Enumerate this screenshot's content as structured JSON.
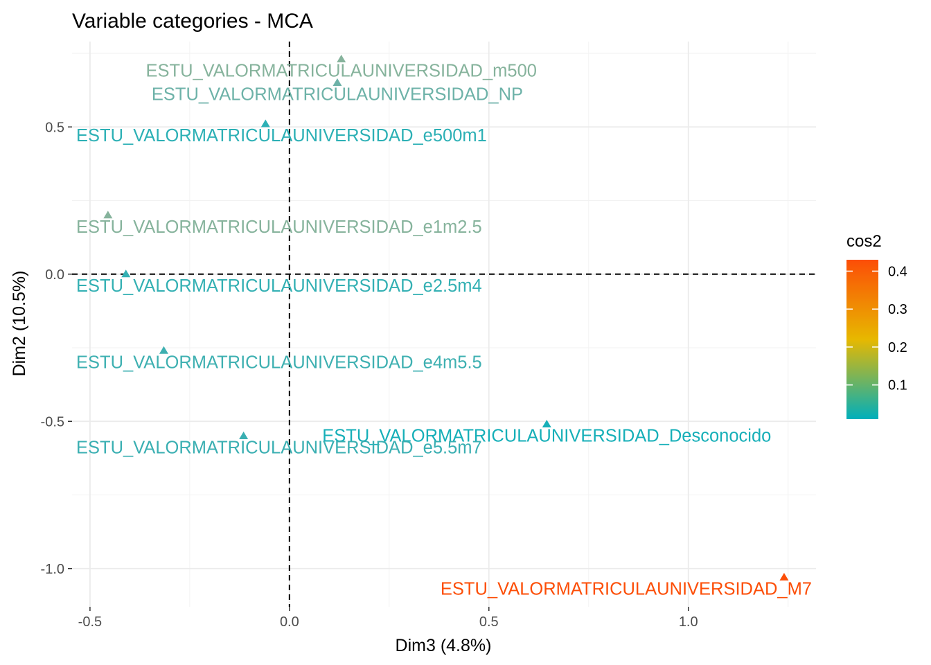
{
  "chart_data": {
    "type": "scatter",
    "title": "Variable categories - MCA",
    "xlabel": "Dim3 (4.8%)",
    "ylabel": "Dim2 (10.5%)",
    "xlim": [
      -0.545,
      1.32
    ],
    "ylim": [
      -1.13,
      0.79
    ],
    "x_ticks": [
      -0.5,
      0.0,
      0.5,
      1.0
    ],
    "x_tick_labels": [
      "-0.5",
      "0.0",
      "0.5",
      "1.0"
    ],
    "y_ticks": [
      -1.0,
      -0.5,
      0.0,
      0.5
    ],
    "y_tick_labels": [
      "-1.0",
      "-0.5",
      "0.0",
      "0.5"
    ],
    "reference_lines": {
      "x": 0,
      "y": 0
    },
    "grid": true,
    "legend": {
      "title": "cos2",
      "position": "right",
      "range": [
        0.01,
        0.43
      ],
      "ticks": [
        0.1,
        0.2,
        0.3,
        0.4
      ],
      "tick_labels": [
        "0.1",
        "0.2",
        "0.3",
        "0.4"
      ],
      "color_stops": [
        "#00AFBB",
        "#E7B800",
        "#FC4E07"
      ]
    },
    "points": [
      {
        "label": "ESTU_VALORMATRICULAUNIVERSIDAD_m500",
        "x": 0.13,
        "y": 0.73,
        "cos2": 0.07,
        "color": "#86b39c"
      },
      {
        "label": "ESTU_VALORMATRICULAUNIVERSIDAD_NP",
        "x": 0.12,
        "y": 0.65,
        "cos2": 0.05,
        "color": "#6db2a8"
      },
      {
        "label": "ESTU_VALORMATRICULAUNIVERSIDAD_e500m1",
        "x": -0.06,
        "y": 0.51,
        "cos2": 0.02,
        "color": "#2cb0b5"
      },
      {
        "label": "ESTU_VALORMATRICULAUNIVERSIDAD_e1m2.5",
        "x": -0.455,
        "y": 0.2,
        "cos2": 0.07,
        "color": "#86b39c"
      },
      {
        "label": "ESTU_VALORMATRICULAUNIVERSIDAD_e2.5m4",
        "x": -0.41,
        "y": 0.0,
        "cos2": 0.02,
        "color": "#33b0b3"
      },
      {
        "label": "ESTU_VALORMATRICULAUNIVERSIDAD_e4m5.5",
        "x": -0.315,
        "y": -0.26,
        "cos2": 0.03,
        "color": "#3eb0b1"
      },
      {
        "label": "ESTU_VALORMATRICULAUNIVERSIDAD_Desconocido",
        "x": 0.645,
        "y": -0.51,
        "cos2": 0.015,
        "color": "#16afb8"
      },
      {
        "label": "ESTU_VALORMATRICULAUNIVERSIDAD_e5.5m7",
        "x": -0.115,
        "y": -0.55,
        "cos2": 0.03,
        "color": "#3aafb2"
      },
      {
        "label": "ESTU_VALORMATRICULAUNIVERSIDAD_M7",
        "x": 1.24,
        "y": -1.03,
        "cos2": 0.43,
        "color": "#FC4E07"
      }
    ]
  }
}
